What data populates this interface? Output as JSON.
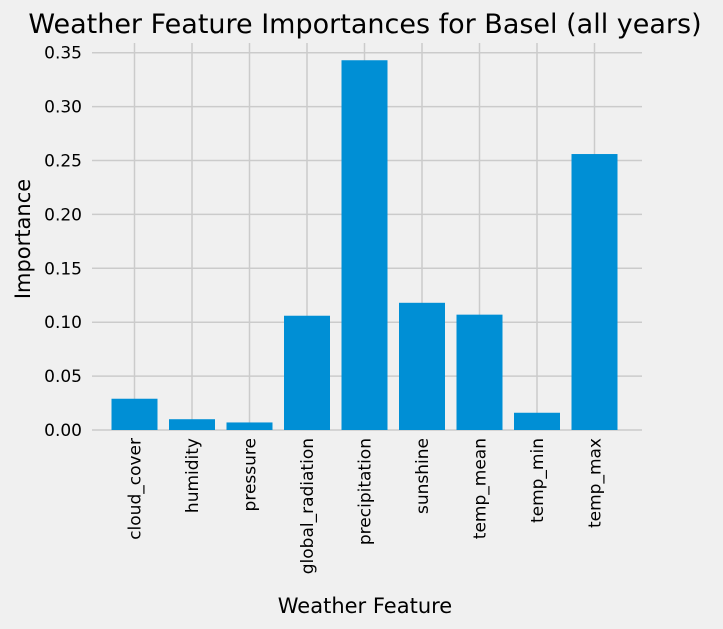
{
  "chart_data": {
    "type": "bar",
    "title": "Weather Feature Importances for Basel (all years)",
    "xlabel": "Weather Feature",
    "ylabel": "Importance",
    "categories": [
      "cloud_cover",
      "humidity",
      "pressure",
      "global_radiation",
      "precipitation",
      "sunshine",
      "temp_mean",
      "temp_min",
      "temp_max"
    ],
    "values": [
      0.029,
      0.01,
      0.007,
      0.106,
      0.343,
      0.118,
      0.107,
      0.016,
      0.256
    ],
    "ylim": [
      0,
      0.36
    ],
    "yticks": [
      0.0,
      0.05,
      0.1,
      0.15,
      0.2,
      0.25,
      0.3,
      0.35
    ],
    "ytick_labels": [
      "0.00",
      "0.05",
      "0.10",
      "0.15",
      "0.20",
      "0.25",
      "0.30",
      "0.35"
    ],
    "grid": true,
    "colors": {
      "bar": "#008fd5",
      "background": "#f0f0f0",
      "grid": "#cbcbcb"
    }
  }
}
